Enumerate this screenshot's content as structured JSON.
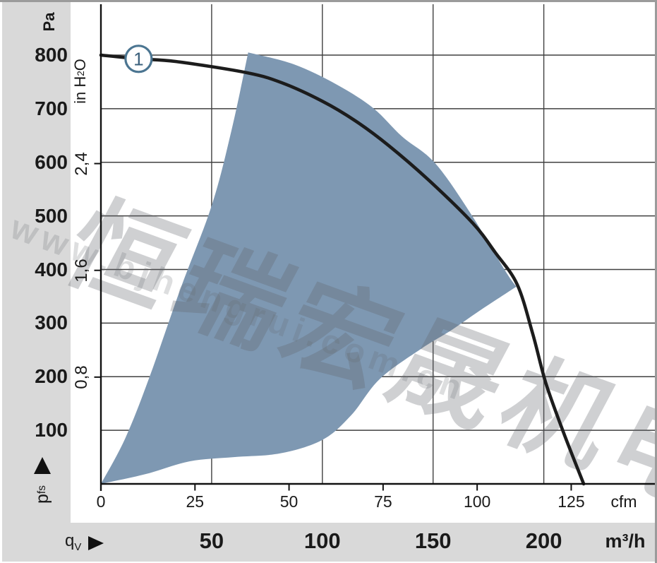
{
  "watermark": {
    "cjk_text": "恒瑞宏晟机电",
    "url_text": "www.bjhengrui.com.cn"
  },
  "labels": {
    "pa_unit": "Pa",
    "inh2o_unit": {
      "pre": "in H",
      "sub": "2",
      "post": "O"
    },
    "pfs": {
      "main": "p",
      "sub": "fs"
    },
    "qv": {
      "main": "q",
      "sub": "V"
    },
    "cfm_unit": "cfm",
    "m3h_unit": "m³/h",
    "curve_marker": "1"
  },
  "colors": {
    "region_fill": "#7e98b2",
    "curve": "#1c1c1c",
    "grid": "#404040",
    "axis": "#111111",
    "panel": "#d9d9d9",
    "marker_stroke": "#4b7591",
    "marker_text": "#3b607c",
    "watermark_cjk": "rgba(95,100,106,0.30)",
    "watermark_url": "rgba(100,105,110,0.22)"
  },
  "chart_data": {
    "type": "line",
    "title": "Fan air-flow / pressure characteristic curve",
    "grid": true,
    "x_axes": [
      {
        "unit": "cfm",
        "ticks": [
          0,
          25,
          50,
          75,
          100,
          125
        ],
        "range": [
          0,
          147
        ]
      },
      {
        "unit": "m³/h",
        "ticks": [
          50,
          100,
          150,
          200
        ],
        "range": [
          0,
          250
        ],
        "gridlines": true
      }
    ],
    "y_axes": [
      {
        "unit": "Pa",
        "ticks": [
          100,
          200,
          300,
          400,
          500,
          600,
          700,
          800
        ],
        "range": [
          0,
          895
        ],
        "gridlines": true
      },
      {
        "unit": "in H₂O",
        "ticks": [
          0.8,
          1.6,
          2.4
        ],
        "tick_labels": [
          "0,8",
          "1,6",
          "2,4"
        ],
        "pa_equivalent": [
          199.2,
          398.4,
          597.6
        ]
      }
    ],
    "series": [
      {
        "name": "1",
        "x_unit": "m³/h",
        "y_unit": "Pa",
        "points": [
          [
            0,
            800
          ],
          [
            17,
            793
          ],
          [
            34,
            788
          ],
          [
            66,
            767
          ],
          [
            82,
            748
          ],
          [
            100,
            714
          ],
          [
            115,
            677
          ],
          [
            130,
            631
          ],
          [
            149,
            563
          ],
          [
            168,
            486
          ],
          [
            178,
            432
          ],
          [
            188,
            372
          ],
          [
            195,
            280
          ],
          [
            201,
            187
          ],
          [
            209,
            95
          ],
          [
            218,
            0
          ]
        ]
      }
    ],
    "marker": {
      "label": "1",
      "x_m3h": 17,
      "pa": 793
    },
    "operating_region": {
      "x_unit": "m³/h",
      "y_unit": "Pa",
      "left_edge": [
        [
          0,
          0
        ],
        [
          11,
          85
        ],
        [
          22,
          200
        ],
        [
          36,
          365
        ],
        [
          50,
          519
        ],
        [
          59,
          660
        ],
        [
          66.5,
          805
        ]
      ],
      "top_edge": [
        [
          66.5,
          805
        ],
        [
          87,
          783
        ],
        [
          106.5,
          745
        ],
        [
          123,
          701
        ],
        [
          136,
          648
        ],
        [
          151,
          598
        ],
        [
          167.5,
          501
        ],
        [
          182.5,
          398
        ],
        [
          187.6,
          368
        ]
      ],
      "bottom_edge": [
        [
          187.6,
          368
        ],
        [
          171,
          323
        ],
        [
          158,
          286
        ],
        [
          145,
          253
        ],
        [
          126,
          196
        ],
        [
          113,
          128
        ],
        [
          100,
          82
        ],
        [
          81,
          57
        ],
        [
          60,
          50
        ],
        [
          40,
          42
        ],
        [
          20,
          18
        ],
        [
          0,
          0
        ]
      ]
    }
  }
}
